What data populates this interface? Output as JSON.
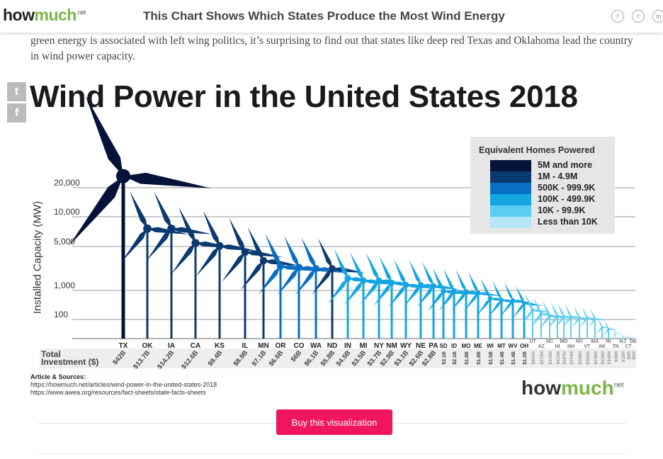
{
  "header": {
    "logo": "howmuch",
    "logo_suffix": ".net",
    "title": "This Chart Shows Which States Produce the Most Wind Energy",
    "social": [
      "f",
      "t",
      "in"
    ]
  },
  "article": {
    "text": "green energy is associated with left wing politics, it’s surprising to find out that states like deep red Texas and Oklahoma lead the country in wind power capacity."
  },
  "share": {
    "twitter": "t",
    "facebook": "f"
  },
  "legend": {
    "title": "Equivalent Homes Powered",
    "items": [
      {
        "label": "5M and more",
        "color": "#05123a"
      },
      {
        "label": "1M - 4.9M",
        "color": "#0b3a70"
      },
      {
        "label": "500K - 999.9K",
        "color": "#0a6fc4"
      },
      {
        "label": "100K - 499.9K",
        "color": "#14a6e2"
      },
      {
        "label": "10K - 99.9K",
        "color": "#5bcdf2"
      },
      {
        "label": "Less than 10K",
        "color": "#b5e4f7"
      }
    ]
  },
  "chart_data": {
    "type": "bar",
    "title": "Wind Power in the United States 2018",
    "ylabel": "Installed Capacity (MW)",
    "yticks": [
      "100",
      "1,000",
      "5,000",
      "10,000",
      "20,000"
    ],
    "ytick_values": [
      100,
      1000,
      5000,
      10000,
      20000
    ],
    "investment_label": [
      "Total",
      "Investment ($)"
    ],
    "categories": [
      "TX",
      "OK",
      "IA",
      "CA",
      "KS",
      "IL",
      "MN",
      "OR",
      "CO",
      "WA",
      "ND",
      "IN",
      "MI",
      "NY",
      "NM",
      "WY",
      "NE",
      "PA",
      "SD",
      "ID",
      "MO",
      "ME",
      "WI",
      "MT",
      "WV",
      "OH",
      "UT",
      "AZ",
      "NC",
      "HI",
      "MD",
      "NH",
      "NV",
      "VT",
      "MA",
      "AK",
      "RI",
      "TN",
      "NJ",
      "CT",
      "DE"
    ],
    "capacity_mw": [
      24000,
      8000,
      8000,
      5600,
      5100,
      4500,
      3700,
      3200,
      3100,
      3000,
      3000,
      2100,
      1900,
      1900,
      1700,
      1500,
      1500,
      1400,
      980,
      970,
      960,
      920,
      750,
      700,
      690,
      600,
      390,
      270,
      210,
      200,
      190,
      185,
      150,
      150,
      115,
      60,
      50,
      30,
      10,
      5,
      2
    ],
    "homes_tier": [
      0,
      1,
      1,
      1,
      1,
      1,
      1,
      2,
      2,
      2,
      1,
      3,
      3,
      3,
      3,
      3,
      3,
      3,
      3,
      3,
      3,
      3,
      3,
      3,
      3,
      3,
      4,
      4,
      4,
      4,
      4,
      4,
      4,
      4,
      4,
      4,
      4,
      5,
      5,
      5,
      5
    ],
    "investment": [
      "$42B",
      "$13.7B",
      "$14.2B",
      "$12.6B",
      "$9.4B",
      "$8.9B",
      "$7.1B",
      "$6.6B",
      "$6B",
      "$6.1B",
      "$5.8B",
      "$4.5B",
      "$3.5B",
      "$3.7B",
      "$2.9B",
      "$3.1B",
      "$2.6B",
      "$2.8B",
      "$2.1B",
      "$2.1B",
      "$1.8B",
      "$1.8B",
      "$1.5B",
      "$1.4B",
      "$1.4B",
      "$1.2B",
      "$851M",
      "$573M",
      "$330M",
      "$412M",
      "$397M",
      "$374M",
      "$306M",
      "$300M",
      "$236M",
      "$126M",
      "$346M",
      "$39M",
      "$15M",
      "$9M",
      "$5M"
    ],
    "grid": true
  },
  "sources": {
    "heading": "Article & Sources:",
    "links": [
      "https://howmuch.net/articles/wind-power-in-the-united-states-2018",
      "https://www.awea.org/resources/fact-sheets/state-facts-sheets"
    ]
  },
  "footer_logo": {
    "text": "howmuch",
    "suffix": "net"
  },
  "buy_button": "Buy this visualization"
}
